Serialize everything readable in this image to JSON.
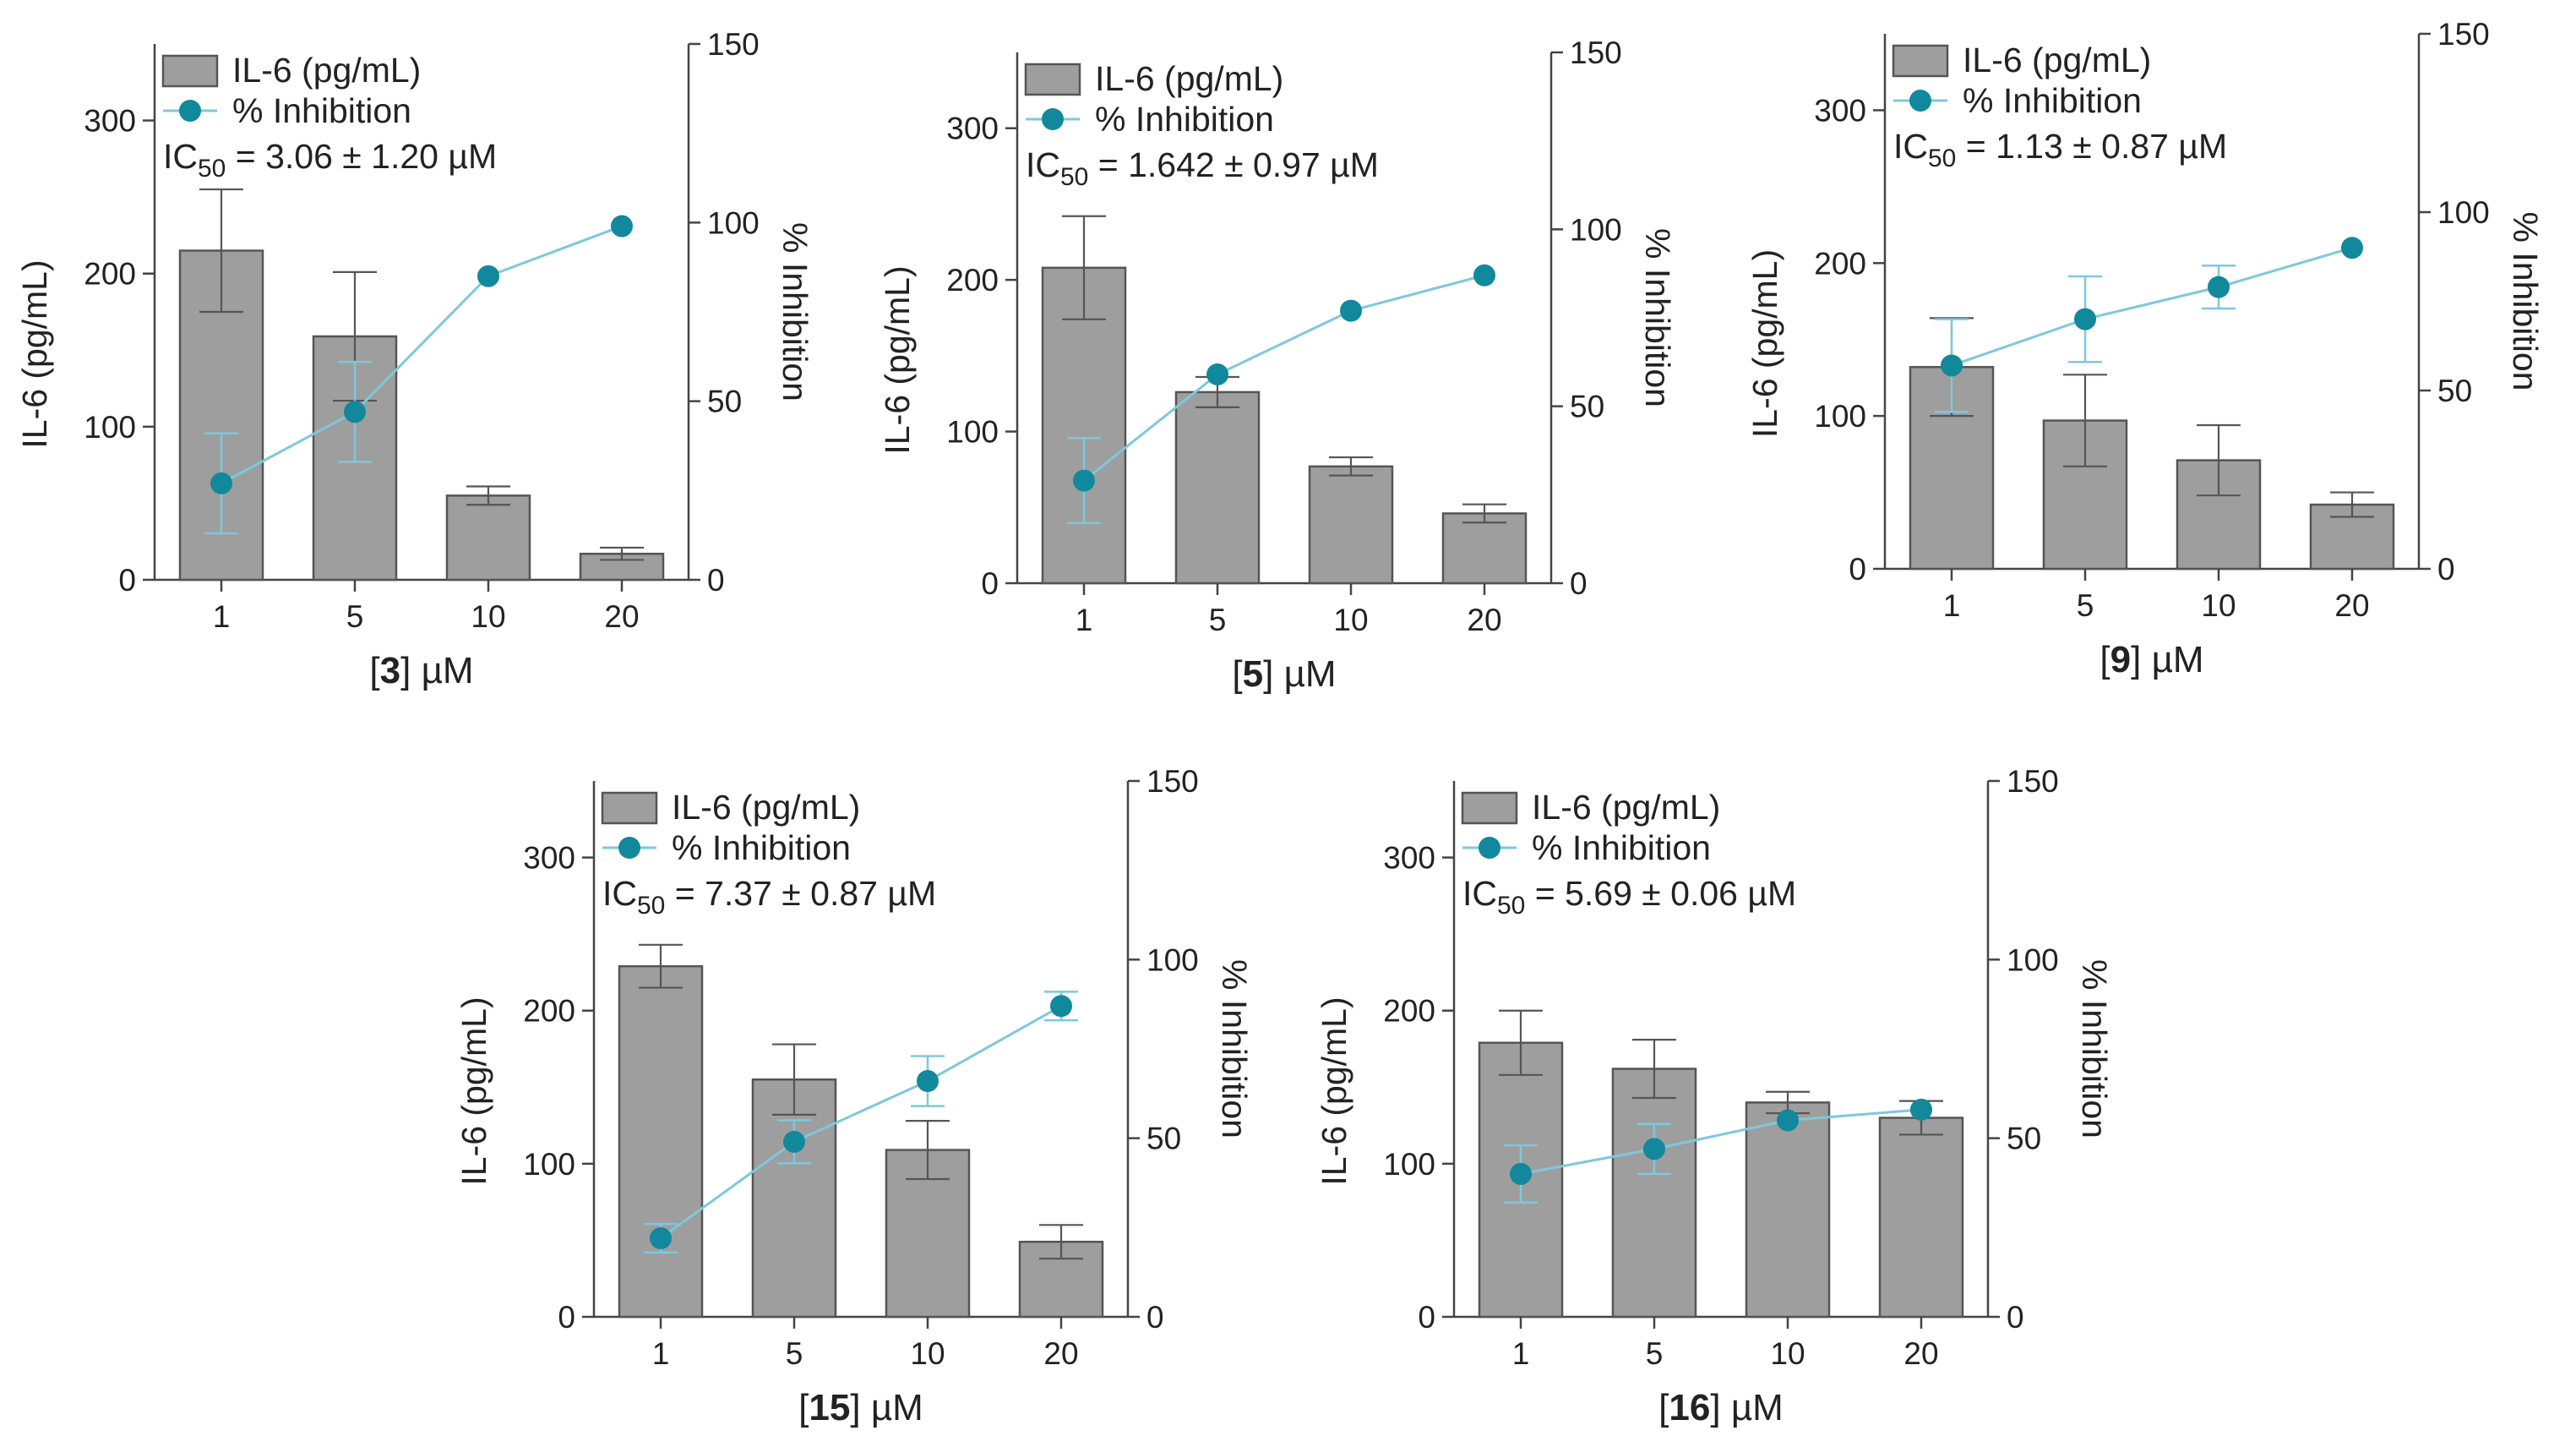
{
  "legend": {
    "bar_label": "IL-6 (pg/mL)",
    "line_label": "% Inhibition",
    "ic50_symbol": "IC",
    "ic50_sub": "50"
  },
  "axes": {
    "left_label": "IL-6 (pg/mL)",
    "right_label": "% Inhibition",
    "unit": "µM",
    "left_ticks": [
      0,
      100,
      200,
      300
    ],
    "right_ticks": [
      0,
      50,
      100,
      150
    ],
    "left_range": [
      0,
      350
    ],
    "right_range": [
      0,
      150
    ]
  },
  "colors": {
    "bar_fill": "#9e9e9e",
    "bar_stroke": "#555555",
    "line": "#7ec8dc",
    "marker": "#12889c",
    "axis": "#444444"
  },
  "chart_data": [
    {
      "type": "bar",
      "compound": "3",
      "categories": [
        "1",
        "5",
        "10",
        "20"
      ],
      "ic50_text": " = 3.06 ± 1.20 µM",
      "xlabel": "[3] µM",
      "ylabel": "IL-6 (pg/mL)",
      "y2label": "% Inhibition",
      "ylim": [
        0,
        350
      ],
      "y2lim": [
        0,
        150
      ],
      "series": [
        {
          "name": "IL-6 (pg/mL)",
          "kind": "bar",
          "axis": "left",
          "values": [
            215,
            159,
            55,
            17
          ],
          "errors": [
            40,
            42,
            6,
            4
          ]
        },
        {
          "name": "% Inhibition",
          "kind": "line",
          "axis": "right",
          "values": [
            27,
            47,
            85,
            99
          ],
          "errors": [
            14,
            14,
            0,
            0
          ]
        }
      ]
    },
    {
      "type": "bar",
      "compound": "5",
      "categories": [
        "1",
        "5",
        "10",
        "20"
      ],
      "ic50_text": " = 1.642 ± 0.97 µM",
      "xlabel": "[5] µM",
      "ylabel": "IL-6 (pg/mL)",
      "y2label": "% Inhibition",
      "ylim": [
        0,
        350
      ],
      "y2lim": [
        0,
        150
      ],
      "series": [
        {
          "name": "IL-6 (pg/mL)",
          "kind": "bar",
          "axis": "left",
          "values": [
            208,
            126,
            77,
            46
          ],
          "errors": [
            34,
            10,
            6,
            6
          ]
        },
        {
          "name": "% Inhibition",
          "kind": "line",
          "axis": "right",
          "values": [
            29,
            59,
            77,
            87
          ],
          "errors": [
            12,
            0,
            0,
            0
          ]
        }
      ]
    },
    {
      "type": "bar",
      "compound": "9",
      "categories": [
        "1",
        "5",
        "10",
        "20"
      ],
      "ic50_text": " = 1.13 ± 0.87 µM",
      "xlabel": "[9] µM",
      "ylabel": "IL-6 (pg/mL)",
      "y2label": "% Inhibition",
      "ylim": [
        0,
        350
      ],
      "y2lim": [
        0,
        150
      ],
      "series": [
        {
          "name": "IL-6 (pg/mL)",
          "kind": "bar",
          "axis": "left",
          "values": [
            132,
            97,
            71,
            42
          ],
          "errors": [
            32,
            30,
            23,
            8
          ]
        },
        {
          "name": "% Inhibition",
          "kind": "line",
          "axis": "right",
          "values": [
            57,
            70,
            79,
            90
          ],
          "errors": [
            13,
            12,
            6,
            0
          ]
        }
      ]
    },
    {
      "type": "bar",
      "compound": "15",
      "categories": [
        "1",
        "5",
        "10",
        "20"
      ],
      "ic50_text": " = 7.37 ± 0.87 µM",
      "xlabel": "[15] µM",
      "ylabel": "IL-6 (pg/mL)",
      "y2label": "% Inhibition",
      "ylim": [
        0,
        350
      ],
      "y2lim": [
        0,
        150
      ],
      "series": [
        {
          "name": "IL-6 (pg/mL)",
          "kind": "bar",
          "axis": "left",
          "values": [
            229,
            155,
            109,
            49
          ],
          "errors": [
            14,
            23,
            19,
            11
          ]
        },
        {
          "name": "% Inhibition",
          "kind": "line",
          "axis": "right",
          "values": [
            22,
            49,
            66,
            87
          ],
          "errors": [
            4,
            6,
            7,
            4
          ]
        }
      ]
    },
    {
      "type": "bar",
      "compound": "16",
      "categories": [
        "1",
        "5",
        "10",
        "20"
      ],
      "ic50_text": " = 5.69 ± 0.06 µM",
      "xlabel": "[16] µM",
      "ylabel": "IL-6 (pg/mL)",
      "y2label": "% Inhibition",
      "ylim": [
        0,
        350
      ],
      "y2lim": [
        0,
        150
      ],
      "series": [
        {
          "name": "IL-6 (pg/mL)",
          "kind": "bar",
          "axis": "left",
          "values": [
            179,
            162,
            140,
            130
          ],
          "errors": [
            21,
            19,
            7,
            11
          ]
        },
        {
          "name": "% Inhibition",
          "kind": "line",
          "axis": "right",
          "values": [
            40,
            47,
            55,
            58
          ],
          "errors": [
            8,
            7,
            0,
            0
          ]
        }
      ]
    }
  ]
}
